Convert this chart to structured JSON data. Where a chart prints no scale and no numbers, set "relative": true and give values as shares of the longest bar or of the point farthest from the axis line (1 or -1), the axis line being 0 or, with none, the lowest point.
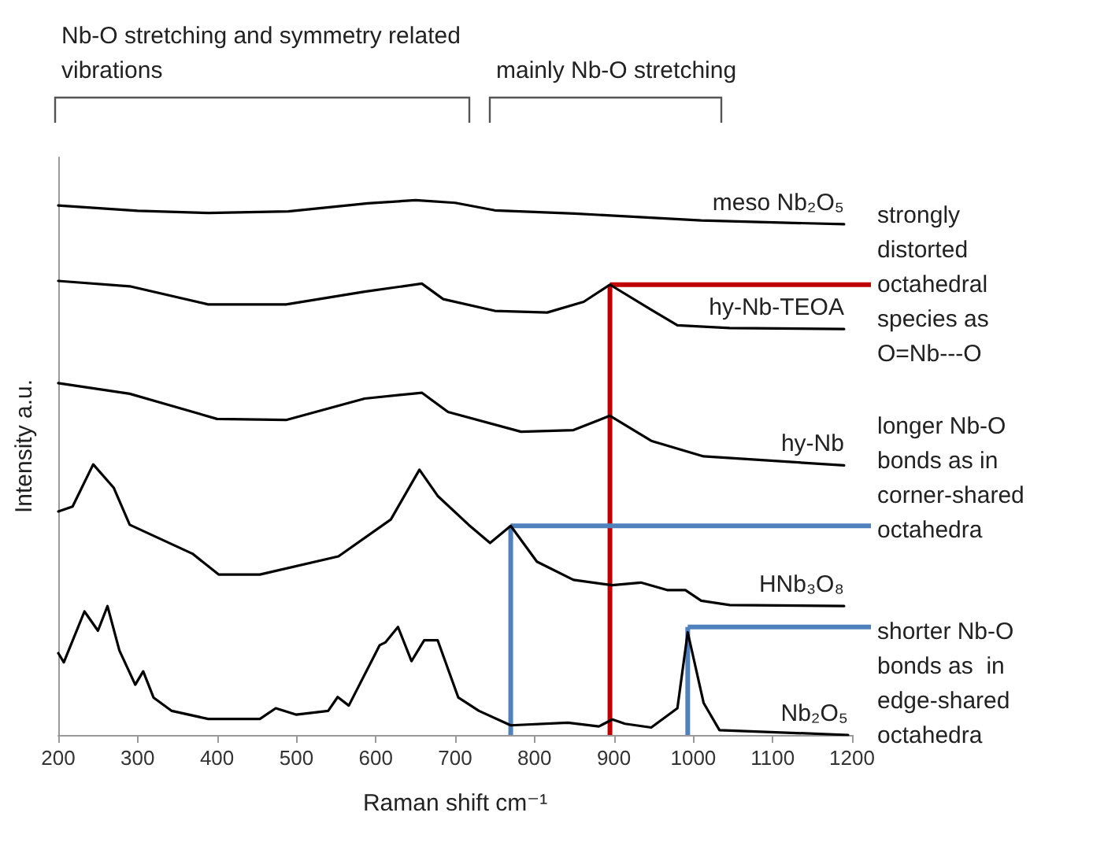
{
  "chart_data": {
    "type": "line",
    "relative": true,
    "xlabel": "Raman shift cm⁻¹",
    "ylabel": "Intensity a.u.",
    "xlim": [
      200,
      1200
    ],
    "xticks": [
      200,
      300,
      400,
      500,
      600,
      700,
      800,
      900,
      1000,
      1100,
      1200
    ],
    "grid": false,
    "legend": false,
    "marker": "none",
    "line_style": "solid",
    "series": [
      {
        "name": "meso Nb₂O₅",
        "color": "#000000",
        "x": [
          200,
          300,
          390,
          490,
          590,
          650,
          700,
          750,
          850,
          1010,
          1190
        ],
        "values": [
          0.99,
          0.98,
          0.976,
          0.979,
          0.994,
          1,
          0.995,
          0.981,
          0.975,
          0.962,
          0.955
        ]
      },
      {
        "name": "hy-Nb-TEOA",
        "color": "#000000",
        "x": [
          200,
          290,
          389,
          487,
          586,
          658,
          685,
          750,
          816,
          862,
          895,
          947,
          980,
          1046,
          1190
        ],
        "values": [
          0.849,
          0.839,
          0.805,
          0.805,
          0.829,
          0.844,
          0.815,
          0.793,
          0.79,
          0.81,
          0.842,
          0.795,
          0.766,
          0.761,
          0.759
        ]
      },
      {
        "name": "hy-Nb",
        "color": "#000000",
        "x": [
          200,
          290,
          400,
          487,
          586,
          658,
          691,
          783,
          849,
          895,
          947,
          1013,
          1190
        ],
        "values": [
          0.658,
          0.638,
          0.591,
          0.589,
          0.629,
          0.64,
          0.604,
          0.567,
          0.57,
          0.597,
          0.55,
          0.521,
          0.504
        ]
      },
      {
        "name": "HNb₃O₈",
        "color": "#000000",
        "x": [
          200,
          218,
          244,
          270,
          290,
          369,
          402,
          454,
          553,
          619,
          655,
          678,
          717,
          744,
          770,
          803,
          849,
          898,
          934,
          967,
          990,
          1010,
          1046,
          1190
        ],
        "values": [
          0.418,
          0.427,
          0.506,
          0.462,
          0.393,
          0.339,
          0.3,
          0.3,
          0.334,
          0.403,
          0.496,
          0.447,
          0.393,
          0.359,
          0.391,
          0.324,
          0.29,
          0.28,
          0.285,
          0.271,
          0.271,
          0.251,
          0.243,
          0.241
        ]
      },
      {
        "name": "Nb₂O₅",
        "color": "#000000",
        "x": [
          200,
          207,
          233,
          250,
          262,
          277,
          297,
          307,
          320,
          343,
          389,
          454,
          474,
          500,
          540,
          552,
          566,
          605,
          612,
          628,
          645,
          661,
          678,
          704,
          730,
          770,
          842,
          881,
          898,
          914,
          947,
          980,
          993,
          1013,
          1033,
          1195
        ],
        "values": [
          0.153,
          0.136,
          0.231,
          0.195,
          0.241,
          0.158,
          0.094,
          0.119,
          0.07,
          0.045,
          0.03,
          0.03,
          0.05,
          0.038,
          0.045,
          0.071,
          0.055,
          0.168,
          0.173,
          0.202,
          0.138,
          0.177,
          0.177,
          0.07,
          0.045,
          0.018,
          0.023,
          0.016,
          0.029,
          0.021,
          0.014,
          0.05,
          0.192,
          0.06,
          0.009,
          0
        ]
      }
    ],
    "ref_lines": [
      {
        "axis": "x",
        "value": 895,
        "color": "#c00000",
        "line_style": "solid"
      },
      {
        "axis": "x",
        "value": 770,
        "color": "#4f81bd",
        "line_style": "solid"
      },
      {
        "axis": "x",
        "value": 993,
        "color": "#4f81bd",
        "line_style": "solid"
      }
    ],
    "annotations": [
      {
        "text": "strongly distorted octahedral species as O=Nb---O",
        "x": 895,
        "y": 0.842
      },
      {
        "text": "longer Nb-O bonds as in corner-shared octahedra",
        "x": 770,
        "y": 0.391
      },
      {
        "text": "shorter Nb-O bonds as  in edge-shared octahedra",
        "x": 993,
        "y": 0.202
      },
      "Nb-O stretching and symmetry related vibrations",
      "mainly Nb-O stretching"
    ]
  }
}
